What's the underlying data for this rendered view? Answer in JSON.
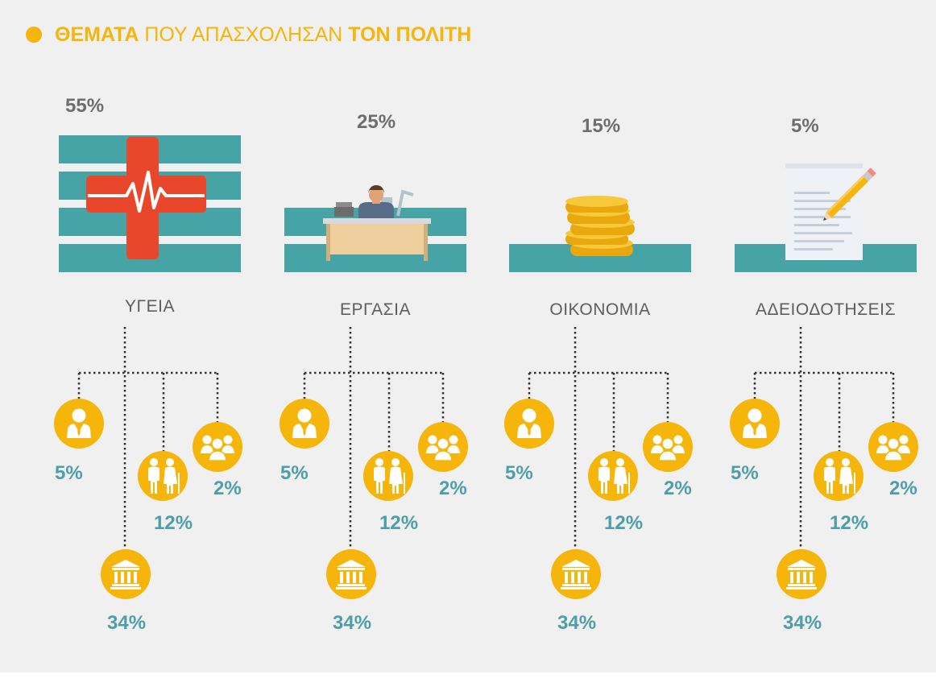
{
  "title": {
    "highlight1": "ΘΕΜΑΤΑ",
    "light": "ΠΟΥ ΑΠΑΣΧΟΛΗΣΑΝ",
    "highlight2": "ΤΟΝ ΠΟΛΙΤΗ"
  },
  "colors": {
    "accent": "#f5b50a",
    "teal": "#47a4a6",
    "pct_text": "#6d6d6d",
    "bottom_pct_text": "#4d9ea8"
  },
  "chart_data": {
    "type": "bar",
    "categories": [
      "ΥΓΕΙΑ",
      "ΕΡΓΑΣΙΑ",
      "ΟΙΚΟΝΟΜΙΑ",
      "ΑΔΕΙΟΔΟΤΗΣΕΙΣ"
    ],
    "values": [
      55,
      25,
      15,
      5
    ],
    "value_labels": [
      "55%",
      "25%",
      "15%",
      "5%"
    ],
    "breakdown_icons": [
      "person-icon",
      "elderly-couple-icon",
      "group-icon",
      "government-building-icon"
    ],
    "breakdown": [
      {
        "category": "ΥΓΕΙΑ",
        "values": [
          5,
          12,
          2,
          34
        ],
        "labels": [
          "5%",
          "12%",
          "2%",
          "34%"
        ]
      },
      {
        "category": "ΕΡΓΑΣΙΑ",
        "values": [
          5,
          12,
          2,
          34
        ],
        "labels": [
          "5%",
          "12%",
          "2%",
          "34%"
        ]
      },
      {
        "category": "ΟΙΚΟΝΟΜΙΑ",
        "values": [
          5,
          12,
          2,
          34
        ],
        "labels": [
          "5%",
          "12%",
          "2%",
          "34%"
        ]
      },
      {
        "category": "ΑΔΕΙΟΔΟΤΗΣΕΙΣ",
        "values": [
          5,
          12,
          2,
          34
        ],
        "labels": [
          "5%",
          "12%",
          "2%",
          "34%"
        ]
      }
    ]
  }
}
